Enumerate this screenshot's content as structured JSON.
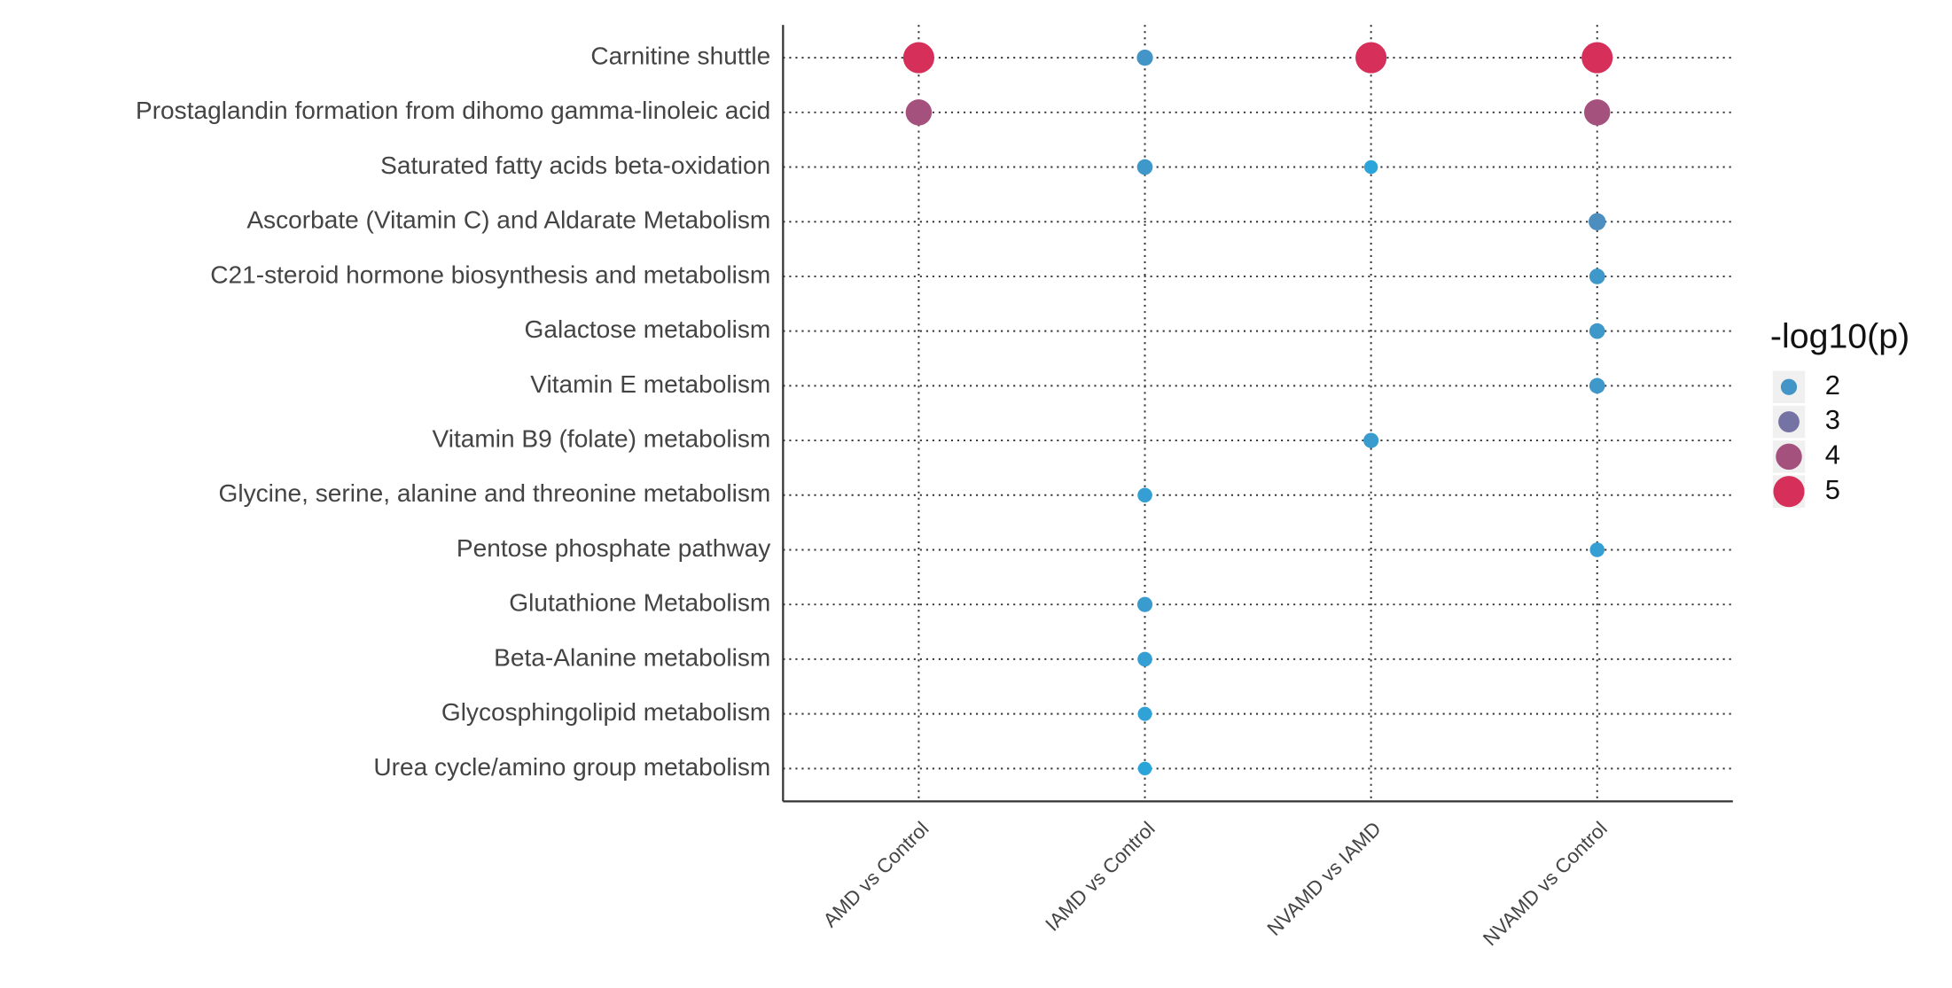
{
  "chart_data": {
    "type": "dotplot",
    "x_categories": [
      "AMD vs Control",
      "IAMD vs Control",
      "NVAMD vs IAMD",
      "NVAMD vs Control"
    ],
    "y_categories": [
      "Carnitine shuttle",
      "Prostaglandin formation from dihomo gamma-linoleic acid",
      "Saturated fatty acids beta-oxidation",
      "Ascorbate (Vitamin C) and Aldarate Metabolism",
      "C21-steroid hormone biosynthesis and metabolism",
      "Galactose metabolism",
      "Vitamin E metabolism",
      "Vitamin B9 (folate) metabolism",
      "Glycine, serine, alanine and threonine metabolism",
      "Pentose phosphate pathway",
      "Glutathione Metabolism",
      "Beta-Alanine metabolism",
      "Glycosphingolipid metabolism",
      "Urea cycle/amino group metabolism"
    ],
    "values": [
      [
        5.0,
        2.0,
        5.0,
        5.0
      ],
      [
        4.0,
        null,
        null,
        4.0
      ],
      [
        null,
        1.9,
        1.5,
        null
      ],
      [
        null,
        null,
        null,
        2.2
      ],
      [
        null,
        null,
        null,
        1.9
      ],
      [
        null,
        null,
        null,
        1.9
      ],
      [
        null,
        null,
        null,
        1.9
      ],
      [
        null,
        null,
        1.8,
        null
      ],
      [
        null,
        1.7,
        null,
        null
      ],
      [
        null,
        null,
        null,
        1.7
      ],
      [
        null,
        1.8,
        null,
        null
      ],
      [
        null,
        1.7,
        null,
        null
      ],
      [
        null,
        1.6,
        null,
        null
      ],
      [
        null,
        1.5,
        null,
        null
      ]
    ],
    "color_low": "#2ba5d9",
    "color_high": "#d6305a",
    "grid": true,
    "legend": {
      "title": "-log10(p)",
      "breaks": [
        2,
        3,
        4,
        5
      ],
      "position": "right"
    }
  }
}
